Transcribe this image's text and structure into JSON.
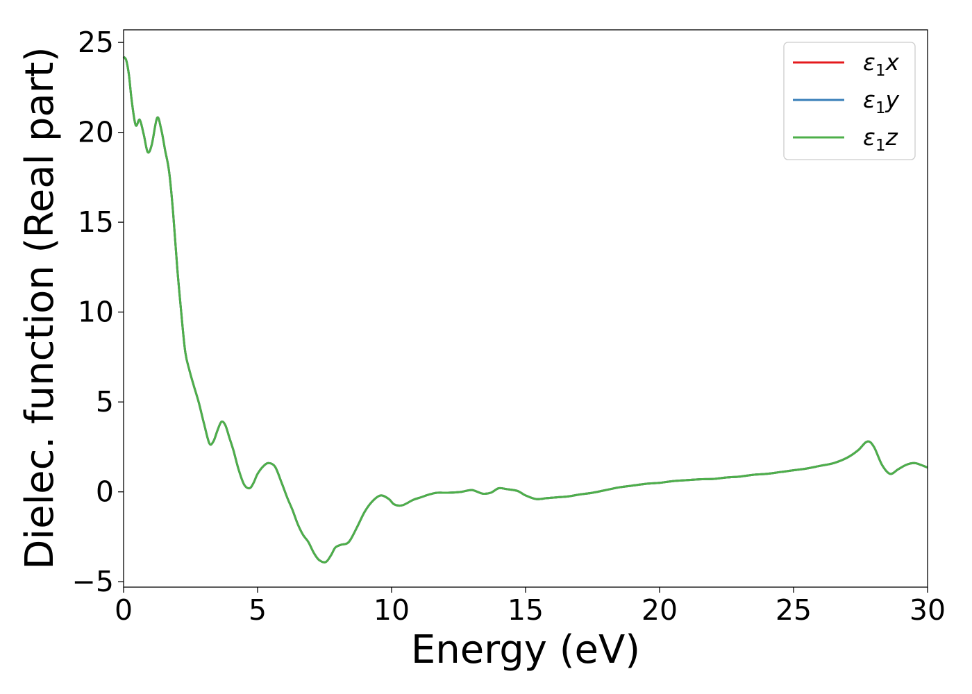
{
  "chart_data": {
    "type": "line",
    "xlabel": "Energy (eV)",
    "ylabel": "Dielec. function (Real part)",
    "xlim": [
      0,
      30
    ],
    "ylim": [
      -5.3,
      25.7
    ],
    "xticks": [
      0,
      5,
      10,
      15,
      20,
      25,
      30
    ],
    "yticks": [
      -5,
      0,
      5,
      10,
      15,
      20,
      25
    ],
    "xtick_labels": [
      "0",
      "5",
      "10",
      "15",
      "20",
      "25",
      "30"
    ],
    "ytick_labels": [
      "−5",
      "0",
      "5",
      "10",
      "15",
      "20",
      "25"
    ],
    "grid": false,
    "legend_position": "top-right",
    "series": [
      {
        "name": "ε₁x",
        "legend_main": "ε",
        "legend_sub": "1",
        "legend_tail": "x",
        "color": "#e41a1c"
      },
      {
        "name": "ε₁y",
        "legend_main": "ε",
        "legend_sub": "1",
        "legend_tail": "y",
        "color": "#377eb8"
      },
      {
        "name": "ε₁z",
        "legend_main": "ε",
        "legend_sub": "1",
        "legend_tail": "z",
        "color": "#4daf4a"
      }
    ],
    "x": [
      0,
      0.1,
      0.2,
      0.3,
      0.45,
      0.6,
      0.75,
      0.9,
      1.05,
      1.25,
      1.4,
      1.55,
      1.7,
      1.85,
      2.0,
      2.15,
      2.3,
      2.45,
      2.6,
      2.8,
      3.0,
      3.2,
      3.35,
      3.5,
      3.65,
      3.8,
      3.95,
      4.1,
      4.3,
      4.5,
      4.7,
      4.85,
      5.0,
      5.2,
      5.4,
      5.65,
      5.9,
      6.1,
      6.3,
      6.5,
      6.7,
      6.9,
      7.1,
      7.3,
      7.55,
      7.75,
      7.9,
      8.1,
      8.4,
      8.7,
      9.0,
      9.3,
      9.6,
      9.9,
      10.1,
      10.4,
      10.8,
      11.1,
      11.4,
      11.7,
      12.1,
      12.6,
      13.0,
      13.4,
      13.7,
      14.0,
      14.3,
      14.7,
      15.0,
      15.4,
      15.8,
      16.2,
      16.6,
      17.0,
      17.5,
      18.0,
      18.5,
      19.0,
      19.5,
      20.0,
      20.5,
      21.0,
      21.5,
      22.0,
      22.5,
      23.0,
      23.5,
      24.0,
      24.5,
      25.0,
      25.5,
      26.0,
      26.5,
      27.0,
      27.4,
      27.75,
      28.0,
      28.3,
      28.6,
      28.9,
      29.2,
      29.5,
      29.75,
      30.0
    ],
    "y": [
      24.2,
      24.0,
      23.2,
      21.8,
      20.4,
      20.7,
      19.9,
      18.9,
      19.3,
      20.8,
      20.2,
      19.0,
      17.8,
      15.5,
      12.5,
      10.0,
      7.8,
      6.8,
      6.0,
      5.0,
      3.8,
      2.7,
      2.8,
      3.4,
      3.9,
      3.7,
      3.0,
      2.3,
      1.2,
      0.4,
      0.2,
      0.5,
      1.0,
      1.4,
      1.6,
      1.4,
      0.5,
      -0.3,
      -1.0,
      -1.8,
      -2.4,
      -2.8,
      -3.4,
      -3.8,
      -3.9,
      -3.5,
      -3.1,
      -2.95,
      -2.8,
      -2.0,
      -1.1,
      -0.5,
      -0.2,
      -0.4,
      -0.7,
      -0.75,
      -0.45,
      -0.3,
      -0.15,
      -0.05,
      -0.05,
      0.0,
      0.1,
      -0.1,
      -0.05,
      0.2,
      0.15,
      0.05,
      -0.2,
      -0.4,
      -0.35,
      -0.3,
      -0.25,
      -0.15,
      -0.05,
      0.1,
      0.25,
      0.35,
      0.45,
      0.5,
      0.6,
      0.65,
      0.7,
      0.72,
      0.8,
      0.85,
      0.95,
      1.0,
      1.1,
      1.2,
      1.3,
      1.45,
      1.6,
      1.9,
      2.3,
      2.8,
      2.5,
      1.5,
      1.0,
      1.25,
      1.5,
      1.6,
      1.5,
      1.35
    ]
  }
}
